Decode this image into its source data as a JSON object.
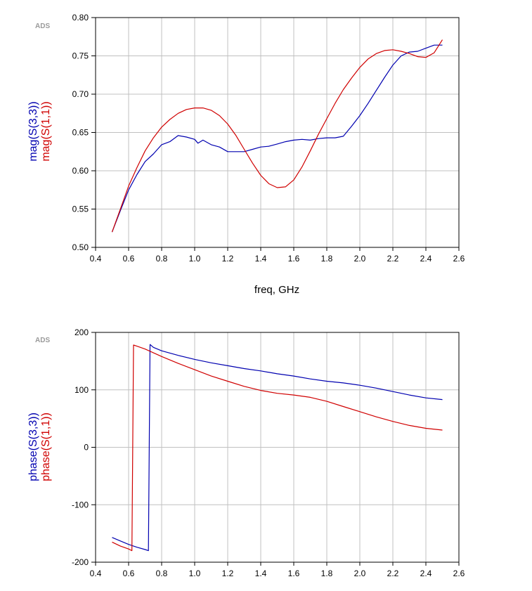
{
  "chart_data": [
    {
      "type": "line",
      "watermark": "ADS",
      "xlabel": "freq, GHz",
      "ylabel_series": [
        "mag(S(3,3))",
        "mag(S(1,1))"
      ],
      "xlim": [
        0.4,
        2.6
      ],
      "ylim": [
        0.5,
        0.8
      ],
      "xticks": [
        "0.4",
        "0.6",
        "0.8",
        "1.0",
        "1.2",
        "1.4",
        "1.6",
        "1.8",
        "2.0",
        "2.2",
        "2.4",
        "2.6"
      ],
      "yticks": [
        "0.50",
        "0.55",
        "0.60",
        "0.65",
        "0.70",
        "0.75",
        "0.80"
      ],
      "grid": true,
      "series": [
        {
          "name": "mag(S(3,3))",
          "color": "#0000b0",
          "x": [
            0.5,
            0.55,
            0.6,
            0.65,
            0.7,
            0.75,
            0.8,
            0.85,
            0.9,
            0.95,
            1.0,
            1.02,
            1.05,
            1.1,
            1.15,
            1.2,
            1.25,
            1.3,
            1.35,
            1.4,
            1.45,
            1.5,
            1.55,
            1.6,
            1.65,
            1.7,
            1.75,
            1.8,
            1.85,
            1.9,
            1.95,
            2.0,
            2.05,
            2.1,
            2.15,
            2.2,
            2.25,
            2.3,
            2.35,
            2.4,
            2.45,
            2.5
          ],
          "y": [
            0.52,
            0.548,
            0.575,
            0.595,
            0.612,
            0.622,
            0.634,
            0.638,
            0.646,
            0.644,
            0.641,
            0.636,
            0.64,
            0.634,
            0.631,
            0.625,
            0.625,
            0.625,
            0.628,
            0.631,
            0.632,
            0.635,
            0.638,
            0.64,
            0.641,
            0.64,
            0.642,
            0.643,
            0.643,
            0.645,
            0.658,
            0.672,
            0.688,
            0.705,
            0.722,
            0.738,
            0.75,
            0.755,
            0.756,
            0.76,
            0.764,
            0.764
          ]
        },
        {
          "name": "mag(S(1,1))",
          "color": "#d00000",
          "x": [
            0.5,
            0.55,
            0.6,
            0.65,
            0.7,
            0.75,
            0.8,
            0.85,
            0.9,
            0.95,
            1.0,
            1.05,
            1.1,
            1.15,
            1.2,
            1.25,
            1.3,
            1.35,
            1.4,
            1.45,
            1.5,
            1.55,
            1.6,
            1.65,
            1.7,
            1.75,
            1.8,
            1.85,
            1.9,
            1.95,
            2.0,
            2.05,
            2.1,
            2.15,
            2.2,
            2.25,
            2.3,
            2.35,
            2.4,
            2.45,
            2.5
          ],
          "y": [
            0.52,
            0.55,
            0.58,
            0.604,
            0.626,
            0.643,
            0.657,
            0.667,
            0.675,
            0.68,
            0.682,
            0.682,
            0.679,
            0.672,
            0.661,
            0.646,
            0.628,
            0.61,
            0.594,
            0.583,
            0.578,
            0.579,
            0.588,
            0.605,
            0.626,
            0.648,
            0.668,
            0.688,
            0.706,
            0.721,
            0.735,
            0.746,
            0.753,
            0.757,
            0.758,
            0.756,
            0.753,
            0.749,
            0.748,
            0.754,
            0.771
          ]
        }
      ]
    },
    {
      "type": "line",
      "watermark": "ADS",
      "xlabel": "",
      "ylabel_series": [
        "phase(S(3,3))",
        "phase(S(1,1))"
      ],
      "xlim": [
        0.4,
        2.6
      ],
      "ylim": [
        -200,
        200
      ],
      "xticks": [
        "0.4",
        "0.6",
        "0.8",
        "1.0",
        "1.2",
        "1.4",
        "1.6",
        "1.8",
        "2.0",
        "2.2",
        "2.4",
        "2.6"
      ],
      "yticks": [
        "-200",
        "-100",
        "0",
        "100",
        "200"
      ],
      "grid": true,
      "series": [
        {
          "name": "phase(S(3,3))",
          "color": "#0000b0",
          "x": [
            0.5,
            0.55,
            0.6,
            0.65,
            0.7,
            0.72,
            0.73,
            0.75,
            0.8,
            0.9,
            1.0,
            1.1,
            1.2,
            1.3,
            1.4,
            1.5,
            1.6,
            1.7,
            1.8,
            1.9,
            2.0,
            2.1,
            2.2,
            2.3,
            2.4,
            2.5
          ],
          "y": [
            -157,
            -163,
            -169,
            -174,
            -178,
            -180,
            179,
            174,
            168,
            160,
            153,
            147,
            142,
            137,
            133,
            128,
            124,
            119,
            115,
            112,
            108,
            103,
            97,
            91,
            86,
            83
          ]
        },
        {
          "name": "phase(S(1,1))",
          "color": "#d00000",
          "x": [
            0.5,
            0.55,
            0.6,
            0.62,
            0.63,
            0.65,
            0.7,
            0.8,
            0.9,
            1.0,
            1.1,
            1.2,
            1.3,
            1.4,
            1.5,
            1.6,
            1.7,
            1.8,
            1.9,
            2.0,
            2.1,
            2.2,
            2.3,
            2.4,
            2.5
          ],
          "y": [
            -165,
            -172,
            -177,
            -180,
            178,
            176,
            171,
            158,
            146,
            135,
            124,
            115,
            106,
            99,
            94,
            91,
            87,
            80,
            71,
            62,
            53,
            45,
            38,
            33,
            30
          ]
        }
      ]
    }
  ]
}
